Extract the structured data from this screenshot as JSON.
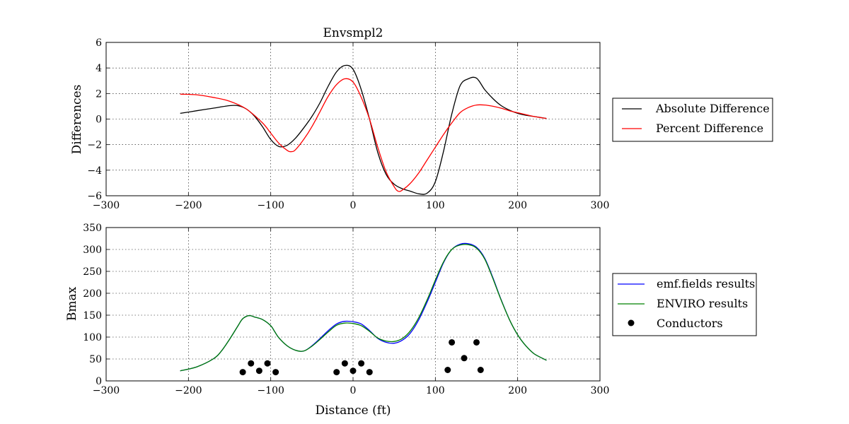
{
  "chart_data": [
    {
      "type": "line",
      "title": "Envsmpl2",
      "xlabel": "",
      "ylabel": "Differences",
      "xlim": [
        -300,
        300
      ],
      "ylim": [
        -6,
        6
      ],
      "xticks": [
        -300,
        -200,
        -100,
        0,
        100,
        200,
        300
      ],
      "yticks": [
        -6,
        -4,
        -2,
        0,
        2,
        4,
        6
      ],
      "grid": true,
      "legend": "right-outside",
      "series": [
        {
          "name": "Absolute Difference",
          "color": "#000000",
          "x": [
            -210,
            -190,
            -170,
            -150,
            -140,
            -130,
            -120,
            -110,
            -100,
            -90,
            -80,
            -70,
            -60,
            -50,
            -40,
            -30,
            -20,
            -10,
            0,
            10,
            20,
            30,
            40,
            50,
            60,
            70,
            80,
            90,
            100,
            110,
            120,
            130,
            140,
            150,
            160,
            170,
            180,
            190,
            200,
            210,
            220,
            235
          ],
          "y": [
            0.45,
            0.65,
            0.85,
            1.05,
            1.05,
            0.8,
            0.25,
            -0.6,
            -1.6,
            -2.15,
            -2.05,
            -1.5,
            -0.7,
            0.2,
            1.3,
            2.6,
            3.7,
            4.2,
            3.9,
            2.3,
            0.0,
            -2.6,
            -4.3,
            -5.1,
            -5.45,
            -5.65,
            -5.85,
            -5.8,
            -4.9,
            -2.5,
            0.4,
            2.6,
            3.15,
            3.2,
            2.3,
            1.6,
            1.05,
            0.7,
            0.45,
            0.3,
            0.2,
            0.05
          ]
        },
        {
          "name": "Percent Difference",
          "color": "#ff0000",
          "x": [
            -210,
            -190,
            -170,
            -150,
            -130,
            -110,
            -100,
            -90,
            -80,
            -75,
            -70,
            -60,
            -50,
            -40,
            -30,
            -20,
            -10,
            0,
            10,
            20,
            30,
            40,
            50,
            55,
            60,
            70,
            80,
            90,
            100,
            110,
            120,
            130,
            140,
            150,
            160,
            170,
            180,
            190,
            200,
            210,
            220,
            235
          ],
          "y": [
            1.95,
            1.9,
            1.7,
            1.4,
            0.8,
            -0.3,
            -1.1,
            -1.9,
            -2.45,
            -2.55,
            -2.4,
            -1.6,
            -0.6,
            0.6,
            1.8,
            2.7,
            3.15,
            2.9,
            1.7,
            0.0,
            -2.2,
            -4.1,
            -5.3,
            -5.65,
            -5.55,
            -5.0,
            -4.2,
            -3.2,
            -2.2,
            -1.2,
            -0.3,
            0.5,
            0.9,
            1.1,
            1.1,
            1.0,
            0.85,
            0.65,
            0.5,
            0.35,
            0.2,
            0.05
          ]
        }
      ]
    },
    {
      "type": "line",
      "title": "",
      "xlabel": "Distance (ft)",
      "ylabel": "Bmax",
      "xlim": [
        -300,
        300
      ],
      "ylim": [
        0,
        350
      ],
      "xticks": [
        -300,
        -200,
        -100,
        0,
        100,
        200,
        300
      ],
      "yticks": [
        0,
        50,
        100,
        150,
        200,
        250,
        300,
        350
      ],
      "grid": true,
      "legend": "right-outside",
      "series": [
        {
          "name": "emf.fields results",
          "color": "#0000ff",
          "x": [
            -210,
            -190,
            -170,
            -160,
            -150,
            -140,
            -135,
            -130,
            -125,
            -120,
            -110,
            -100,
            -95,
            -90,
            -80,
            -70,
            -60,
            -50,
            -40,
            -30,
            -20,
            -10,
            0,
            10,
            20,
            30,
            40,
            50,
            60,
            70,
            80,
            90,
            100,
            110,
            120,
            130,
            140,
            150,
            160,
            170,
            180,
            190,
            200,
            210,
            220,
            235
          ],
          "y": [
            23,
            32,
            50,
            68,
            95,
            125,
            140,
            147,
            149,
            146,
            140,
            126,
            112,
            98,
            80,
            70,
            68,
            80,
            97,
            115,
            130,
            136,
            135,
            130,
            115,
            97,
            88,
            86,
            93,
            110,
            140,
            180,
            225,
            270,
            300,
            312,
            313,
            305,
            280,
            235,
            185,
            140,
            105,
            80,
            62,
            47
          ]
        },
        {
          "name": "ENVIRO results",
          "color": "#008000",
          "x": [
            -210,
            -190,
            -170,
            -160,
            -150,
            -140,
            -135,
            -130,
            -125,
            -120,
            -110,
            -100,
            -95,
            -90,
            -80,
            -70,
            -60,
            -50,
            -40,
            -30,
            -20,
            -10,
            0,
            10,
            20,
            30,
            40,
            50,
            60,
            70,
            80,
            90,
            100,
            110,
            120,
            130,
            140,
            150,
            160,
            170,
            180,
            190,
            200,
            210,
            220,
            235
          ],
          "y": [
            23,
            32,
            50,
            68,
            95,
            125,
            140,
            147,
            149,
            146,
            140,
            126,
            112,
            98,
            80,
            70,
            68,
            79,
            95,
            112,
            127,
            132,
            131,
            126,
            113,
            98,
            91,
            90,
            97,
            115,
            145,
            185,
            230,
            272,
            300,
            310,
            311,
            303,
            278,
            233,
            184,
            140,
            105,
            80,
            62,
            47
          ]
        },
        {
          "name": "Conductors",
          "color": "#000000",
          "marker": "circle",
          "x": [
            -134,
            -124,
            -114,
            -104,
            -94,
            -20,
            -10,
            0,
            10,
            20,
            115,
            120,
            135,
            150,
            155
          ],
          "y": [
            20,
            40,
            23,
            40,
            20,
            20,
            40,
            23,
            40,
            20,
            25,
            88,
            52,
            88,
            25
          ]
        }
      ]
    }
  ]
}
